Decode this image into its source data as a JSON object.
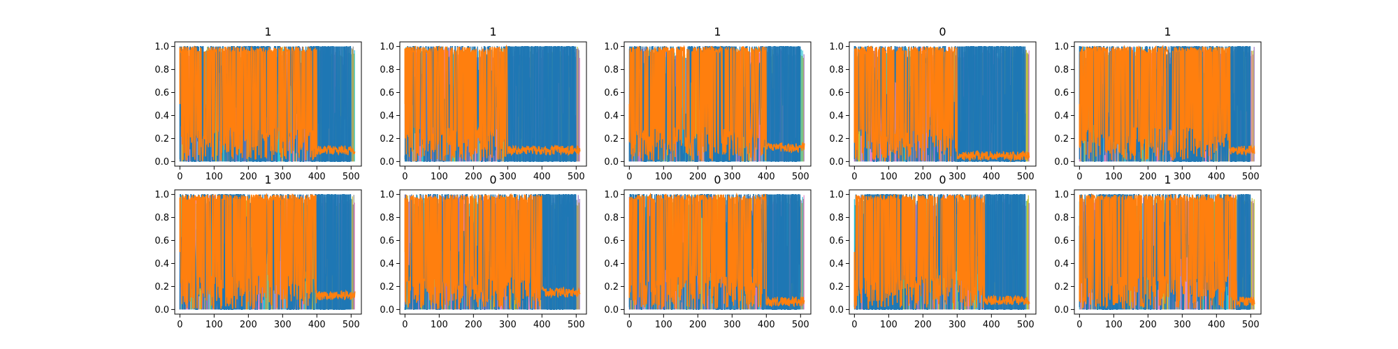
{
  "figure": {
    "rows": 2,
    "cols": 5
  },
  "colors": {
    "series_blue": "#1f77b4",
    "series_orange": "#ff7f0e",
    "series_cyan": "#17becf",
    "series_olive": "#bcbd22",
    "series_pink": "#e377c2",
    "series_gray": "#7f7f7f",
    "series_purple": "#9467bd",
    "frame": "#000000"
  },
  "chart_data": [
    {
      "type": "line",
      "title": "1",
      "xlim": [
        -15,
        530
      ],
      "ylim": [
        -0.04,
        1.04
      ],
      "xticks": [
        "0",
        "100",
        "200",
        "300",
        "400",
        "500"
      ],
      "yticks": [
        "0.0",
        "0.2",
        "0.4",
        "0.6",
        "0.8",
        "1.0"
      ],
      "grid": false,
      "blue_segments": [
        {
          "x0": 0,
          "x1": 100,
          "level": 0.7
        },
        {
          "x0": 100,
          "x1": 150,
          "level": 0.45
        },
        {
          "x0": 150,
          "x1": 200,
          "level": 0.62
        },
        {
          "x0": 200,
          "x1": 260,
          "level": 0.82
        },
        {
          "x0": 260,
          "x1": 300,
          "level": 0.55
        },
        {
          "x0": 300,
          "x1": 380,
          "level": 0.4
        },
        {
          "x0": 380,
          "x1": 500,
          "level": 0.85
        }
      ],
      "orange_tail": {
        "x_start": 400,
        "level": 0.1
      }
    },
    {
      "type": "line",
      "title": "1",
      "xlim": [
        -15,
        530
      ],
      "ylim": [
        -0.04,
        1.04
      ],
      "xticks": [
        "0",
        "100",
        "200",
        "300",
        "400",
        "500"
      ],
      "yticks": [
        "0.0",
        "0.2",
        "0.4",
        "0.6",
        "0.8",
        "1.0"
      ],
      "grid": false,
      "blue_segments": [
        {
          "x0": 0,
          "x1": 290,
          "level": 0.5
        },
        {
          "x0": 290,
          "x1": 500,
          "level": 0.85
        }
      ],
      "orange_tail": {
        "x_start": 300,
        "level": 0.1
      }
    },
    {
      "type": "line",
      "title": "1",
      "xlim": [
        -15,
        530
      ],
      "ylim": [
        -0.04,
        1.04
      ],
      "xticks": [
        "0",
        "100",
        "200",
        "300",
        "400",
        "500"
      ],
      "yticks": [
        "0.0",
        "0.2",
        "0.4",
        "0.6",
        "0.8",
        "1.0"
      ],
      "grid": false,
      "blue_segments": [
        {
          "x0": 0,
          "x1": 220,
          "level": 0.5
        },
        {
          "x0": 220,
          "x1": 310,
          "level": 0.85
        },
        {
          "x0": 310,
          "x1": 400,
          "level": 0.45
        },
        {
          "x0": 400,
          "x1": 500,
          "level": 0.85
        }
      ],
      "orange_tail": {
        "x_start": 400,
        "level": 0.12
      }
    },
    {
      "type": "line",
      "title": "0",
      "xlim": [
        -15,
        530
      ],
      "ylim": [
        -0.04,
        1.04
      ],
      "xticks": [
        "0",
        "100",
        "200",
        "300",
        "400",
        "500"
      ],
      "yticks": [
        "0.0",
        "0.2",
        "0.4",
        "0.6",
        "0.8",
        "1.0"
      ],
      "grid": false,
      "blue_segments": [
        {
          "x0": 0,
          "x1": 300,
          "level": 0.45
        },
        {
          "x0": 300,
          "x1": 500,
          "level": 0.85
        }
      ],
      "orange_tail": {
        "x_start": 300,
        "level": 0.05
      }
    },
    {
      "type": "line",
      "title": "1",
      "xlim": [
        -15,
        530
      ],
      "ylim": [
        -0.04,
        1.04
      ],
      "xticks": [
        "0",
        "100",
        "200",
        "300",
        "400",
        "500"
      ],
      "yticks": [
        "0.0",
        "0.2",
        "0.4",
        "0.6",
        "0.8",
        "1.0"
      ],
      "grid": false,
      "blue_segments": [
        {
          "x0": 0,
          "x1": 270,
          "level": 0.45
        },
        {
          "x0": 270,
          "x1": 360,
          "level": 0.85
        },
        {
          "x0": 360,
          "x1": 440,
          "level": 0.5
        },
        {
          "x0": 440,
          "x1": 500,
          "level": 0.85
        }
      ],
      "orange_tail": {
        "x_start": 440,
        "level": 0.1
      }
    },
    {
      "type": "line",
      "title": "1",
      "xlim": [
        -15,
        530
      ],
      "ylim": [
        -0.04,
        1.04
      ],
      "xticks": [
        "0",
        "100",
        "200",
        "300",
        "400",
        "500"
      ],
      "yticks": [
        "0.0",
        "0.2",
        "0.4",
        "0.6",
        "0.8",
        "1.0"
      ],
      "grid": false,
      "blue_segments": [
        {
          "x0": 0,
          "x1": 110,
          "level": 0.4
        },
        {
          "x0": 110,
          "x1": 190,
          "level": 0.85
        },
        {
          "x0": 190,
          "x1": 400,
          "level": 0.45
        },
        {
          "x0": 400,
          "x1": 500,
          "level": 0.85
        }
      ],
      "orange_tail": {
        "x_start": 400,
        "level": 0.12
      }
    },
    {
      "type": "line",
      "title": "0",
      "xlim": [
        -15,
        530
      ],
      "ylim": [
        -0.04,
        1.04
      ],
      "xticks": [
        "0",
        "100",
        "200",
        "300",
        "400",
        "500"
      ],
      "yticks": [
        "0.0",
        "0.2",
        "0.4",
        "0.6",
        "0.8",
        "1.0"
      ],
      "grid": false,
      "blue_segments": [
        {
          "x0": 0,
          "x1": 400,
          "level": 0.45
        },
        {
          "x0": 400,
          "x1": 500,
          "level": 0.85
        }
      ],
      "orange_tail": {
        "x_start": 400,
        "level": 0.15
      }
    },
    {
      "type": "line",
      "title": "0",
      "xlim": [
        -15,
        530
      ],
      "ylim": [
        -0.04,
        1.04
      ],
      "xticks": [
        "0",
        "100",
        "200",
        "300",
        "400",
        "500"
      ],
      "yticks": [
        "0.0",
        "0.2",
        "0.4",
        "0.6",
        "0.8",
        "1.0"
      ],
      "grid": false,
      "blue_segments": [
        {
          "x0": 0,
          "x1": 400,
          "level": 0.5
        },
        {
          "x0": 400,
          "x1": 500,
          "level": 0.85
        }
      ],
      "orange_tail": {
        "x_start": 400,
        "level": 0.07
      }
    },
    {
      "type": "line",
      "title": "0",
      "xlim": [
        -15,
        530
      ],
      "ylim": [
        -0.04,
        1.04
      ],
      "xticks": [
        "0",
        "100",
        "200",
        "300",
        "400",
        "500"
      ],
      "yticks": [
        "0.0",
        "0.2",
        "0.4",
        "0.6",
        "0.8",
        "1.0"
      ],
      "grid": false,
      "blue_segments": [
        {
          "x0": 0,
          "x1": 30,
          "level": 0.6
        },
        {
          "x0": 30,
          "x1": 140,
          "level": 0.85
        },
        {
          "x0": 140,
          "x1": 380,
          "level": 0.45
        },
        {
          "x0": 380,
          "x1": 500,
          "level": 0.85
        }
      ],
      "orange_tail": {
        "x_start": 380,
        "level": 0.08
      }
    },
    {
      "type": "line",
      "title": "1",
      "xlim": [
        -15,
        530
      ],
      "ylim": [
        -0.04,
        1.04
      ],
      "xticks": [
        "0",
        "100",
        "200",
        "300",
        "400",
        "500"
      ],
      "yticks": [
        "0.0",
        "0.2",
        "0.4",
        "0.6",
        "0.8",
        "1.0"
      ],
      "grid": false,
      "blue_segments": [
        {
          "x0": 0,
          "x1": 60,
          "level": 0.5
        },
        {
          "x0": 60,
          "x1": 140,
          "level": 0.85
        },
        {
          "x0": 140,
          "x1": 460,
          "level": 0.45
        },
        {
          "x0": 460,
          "x1": 500,
          "level": 0.85
        }
      ],
      "orange_tail": {
        "x_start": 460,
        "level": 0.07
      }
    }
  ]
}
